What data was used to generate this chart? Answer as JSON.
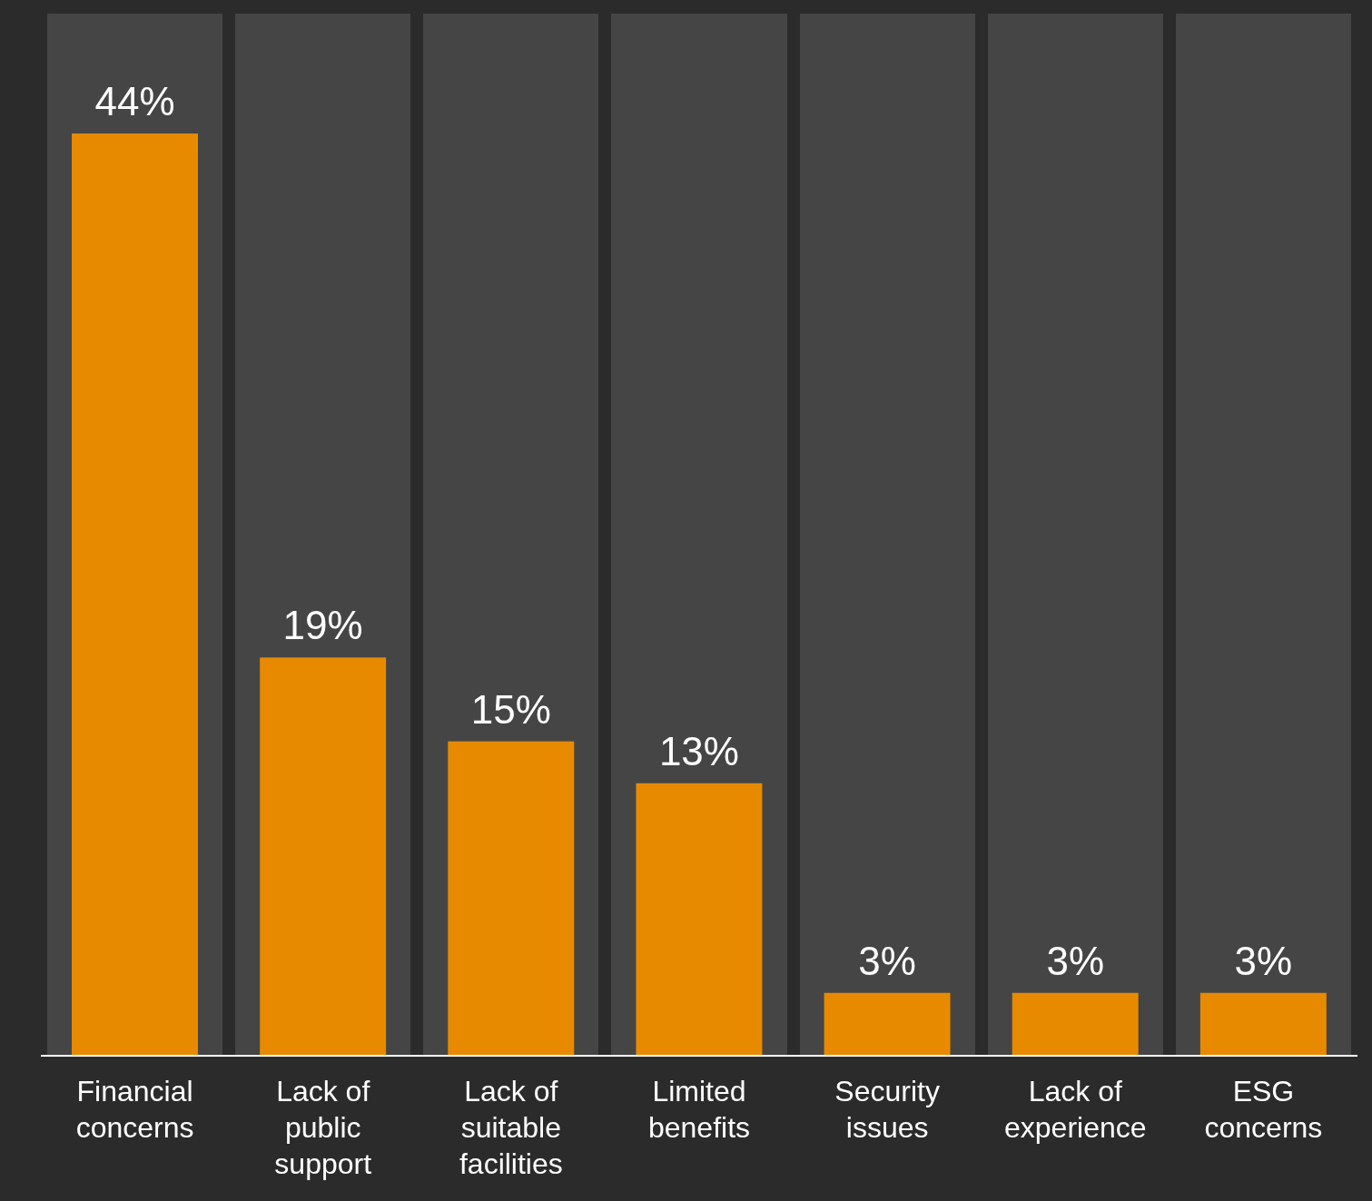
{
  "chart_data": {
    "type": "bar",
    "categories": [
      "Financial concerns",
      "Lack of public support",
      "Lack of suitable facilities",
      "Limited benefits",
      "Security issues",
      "Lack of experience",
      "ESG concerns"
    ],
    "values": [
      44,
      19,
      15,
      13,
      3,
      3,
      3
    ],
    "value_labels": [
      "44%",
      "19%",
      "15%",
      "13%",
      "3%",
      "3%",
      "3%"
    ],
    "color": "#e88a00",
    "bands": [
      {
        "axis": "x",
        "from": "Financial concerns",
        "to": "Financial concerns",
        "color": "#454545"
      },
      {
        "axis": "x",
        "from": "Lack of public support",
        "to": "Lack of public support",
        "color": "#454545"
      },
      {
        "axis": "x",
        "from": "Lack of suitable facilities",
        "to": "Lack of suitable facilities",
        "color": "#454545"
      },
      {
        "axis": "x",
        "from": "Limited benefits",
        "to": "Limited benefits",
        "color": "#454545"
      },
      {
        "axis": "x",
        "from": "Security issues",
        "to": "Security issues",
        "color": "#454545"
      },
      {
        "axis": "x",
        "from": "Lack of experience",
        "to": "Lack of experience",
        "color": "#454545"
      },
      {
        "axis": "x",
        "from": "ESG concerns",
        "to": "ESG concerns",
        "color": "#454545"
      }
    ]
  }
}
